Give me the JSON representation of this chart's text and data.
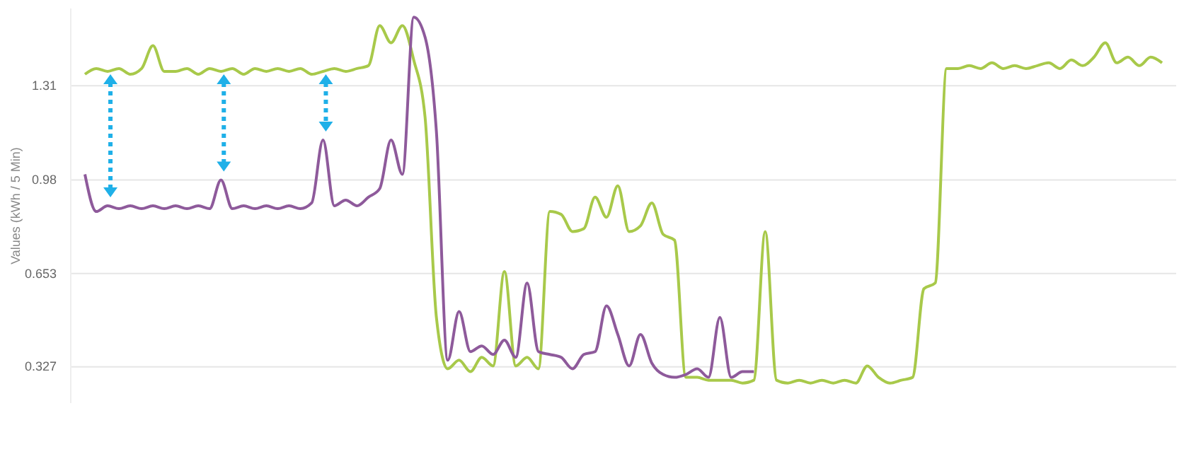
{
  "chart_data": {
    "type": "line",
    "ylabel": "Values (kWh / 5 Min)",
    "categories": [
      null,
      null,
      null,
      null,
      null,
      null,
      null,
      null,
      null,
      null,
      null,
      null,
      null,
      null,
      null,
      null,
      null,
      null,
      null,
      null,
      null,
      null,
      null,
      null,
      null,
      null,
      null,
      null,
      null,
      null,
      null,
      null,
      null,
      null,
      null,
      null,
      null,
      null,
      null,
      null,
      null,
      null,
      null,
      null,
      null,
      null,
      null,
      null,
      null,
      null,
      null,
      null,
      null,
      null,
      null,
      null,
      null,
      null,
      null,
      null,
      null,
      null,
      null,
      null,
      null,
      null,
      null,
      null,
      null,
      null,
      null,
      null,
      null,
      null,
      null,
      null,
      null,
      null,
      null,
      null,
      null,
      null,
      null,
      null,
      null,
      null,
      null,
      null,
      null,
      null,
      null,
      null,
      null,
      null,
      null,
      null
    ],
    "series": [
      {
        "color": "#a8c94a",
        "values": [
          1.35,
          1.37,
          1.36,
          1.37,
          1.35,
          1.37,
          1.45,
          1.36,
          1.36,
          1.37,
          1.35,
          1.37,
          1.36,
          1.37,
          1.35,
          1.37,
          1.36,
          1.37,
          1.36,
          1.37,
          1.35,
          1.36,
          1.37,
          1.36,
          1.37,
          1.38,
          1.52,
          1.46,
          1.52,
          1.4,
          1.2,
          0.5,
          0.32,
          0.35,
          0.31,
          0.36,
          0.33,
          0.66,
          0.33,
          0.36,
          0.32,
          0.87,
          0.86,
          0.8,
          0.81,
          0.92,
          0.85,
          0.96,
          0.8,
          0.82,
          0.9,
          0.79,
          0.77,
          0.29,
          0.29,
          0.28,
          0.28,
          0.28,
          0.27,
          0.28,
          0.8,
          0.28,
          0.27,
          0.28,
          0.27,
          0.28,
          0.27,
          0.28,
          0.27,
          0.33,
          0.29,
          0.27,
          0.28,
          0.29,
          0.6,
          0.62,
          1.37,
          1.37,
          1.38,
          1.37,
          1.39,
          1.37,
          1.38,
          1.37,
          1.38,
          1.39,
          1.37,
          1.4,
          1.38,
          1.41,
          1.46,
          1.39,
          1.41,
          1.38,
          1.41,
          1.39
        ]
      },
      {
        "color": "#8e5a9b",
        "values": [
          1.0,
          0.87,
          0.89,
          0.88,
          0.89,
          0.88,
          0.89,
          0.88,
          0.89,
          0.88,
          0.89,
          0.88,
          0.98,
          0.88,
          0.89,
          0.88,
          0.89,
          0.88,
          0.89,
          0.88,
          0.9,
          1.12,
          0.89,
          0.91,
          0.89,
          0.92,
          0.95,
          1.12,
          1.0,
          1.55,
          1.48,
          1.15,
          0.35,
          0.52,
          0.38,
          0.4,
          0.37,
          0.42,
          0.36,
          0.62,
          0.38,
          0.37,
          0.36,
          0.32,
          0.37,
          0.38,
          0.54,
          0.44,
          0.33,
          0.44,
          0.34,
          0.3,
          0.29,
          0.3,
          0.32,
          0.29,
          0.5,
          0.29,
          0.31,
          0.31,
          null,
          null,
          null,
          null,
          null,
          null,
          null,
          null,
          null,
          null,
          null,
          null,
          null,
          null,
          null,
          null,
          null,
          null,
          null,
          null,
          null,
          null,
          null,
          null,
          null,
          null,
          null,
          null,
          null,
          null,
          null,
          null,
          null,
          null,
          null,
          null
        ]
      }
    ],
    "ylim": [
      0.2,
      1.58
    ],
    "yticks": [
      0.327,
      0.653,
      0.98,
      1.31
    ],
    "grid": "y",
    "marker": "none",
    "line_style": "solid"
  }
}
